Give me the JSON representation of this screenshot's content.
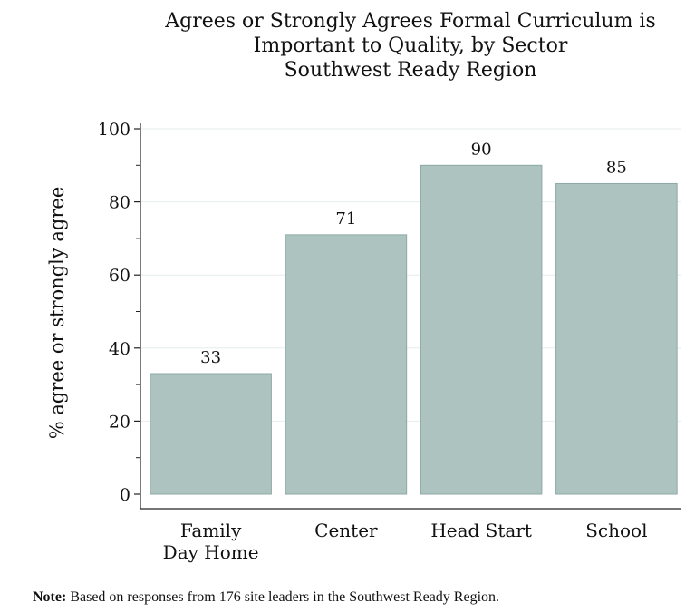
{
  "chart_data": {
    "type": "bar",
    "title": [
      "Agrees or Strongly Agrees Formal Curriculum is",
      "Important to Quality, by Sector",
      "Southwest Ready Region"
    ],
    "categories": [
      [
        "Family",
        "Day Home"
      ],
      [
        "Center"
      ],
      [
        "Head Start"
      ],
      [
        "School"
      ]
    ],
    "values": [
      33,
      71,
      90,
      85
    ],
    "data_labels": [
      "33",
      "71",
      "90",
      "85"
    ],
    "ylabel": "% agree or strongly agree",
    "xlabel": "",
    "ylim": [
      0,
      100
    ],
    "yticks": [
      0,
      20,
      40,
      60,
      80,
      100
    ],
    "y_minor_ticks": [
      10,
      30,
      50,
      70,
      90
    ],
    "grid": true,
    "bar_color": "#adc3c0",
    "bar_edge_color": "#8fa9a6"
  },
  "note": {
    "label": "Note:",
    "text": " Based on responses from 176 site leaders in the Southwest Ready Region."
  }
}
